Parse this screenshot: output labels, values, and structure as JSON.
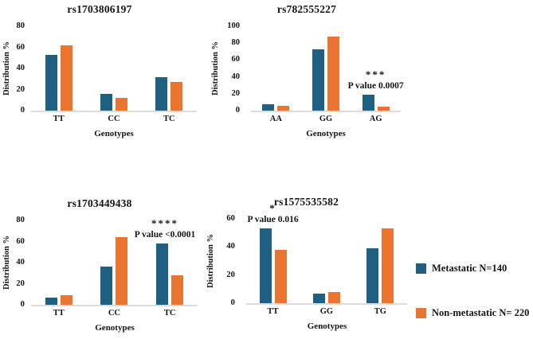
{
  "figure": {
    "ylabel": "Distribution %",
    "xlabel": "Genotypes"
  },
  "legend": {
    "items": [
      {
        "label": "Metastatic N=140",
        "color": "#1F6082"
      },
      {
        "label": "Non-metastatic N= 220",
        "color": "#EC7431"
      }
    ]
  },
  "colors": {
    "metastatic_blue": "#1F6082",
    "non_metastatic_orange": "#EC7431",
    "baseline_gray": "#DCDCDC"
  },
  "chart_data": [
    {
      "type": "bar",
      "title": "rs1703806197",
      "ylabel": "Distribution %",
      "xlabel": "Genotypes",
      "categories": [
        "TT",
        "CC",
        "TC"
      ],
      "series": [
        {
          "name": "Metastatic N=140",
          "color": "#1F6082",
          "values": [
            53,
            16,
            32
          ]
        },
        {
          "name": "Non-metastatic N= 220",
          "color": "#EC7431",
          "values": [
            62,
            12,
            27
          ]
        }
      ],
      "ylim": [
        0,
        80
      ],
      "yticks": [
        0,
        20,
        40,
        60,
        80
      ],
      "grid": false,
      "annotation": null
    },
    {
      "type": "bar",
      "title": "rs782555227",
      "ylabel": "Distribution %",
      "xlabel": "Genotypes",
      "categories": [
        "AA",
        "GG",
        "AG"
      ],
      "series": [
        {
          "name": "Metastatic N=140",
          "color": "#1F6082",
          "values": [
            8,
            73,
            19
          ]
        },
        {
          "name": "Non-metastatic N= 220",
          "color": "#EC7431",
          "values": [
            6,
            88,
            5
          ]
        }
      ],
      "ylim": [
        0,
        100
      ],
      "yticks": [
        0,
        20,
        40,
        60,
        80,
        100
      ],
      "grid": false,
      "annotation": {
        "stars": "***",
        "text": "P value 0.0007",
        "category": "AG"
      }
    },
    {
      "type": "bar",
      "title": "rs1703449438",
      "ylabel": "Distribution %",
      "xlabel": "Genotypes",
      "categories": [
        "TT",
        "CC",
        "TC"
      ],
      "series": [
        {
          "name": "Metastatic N=140",
          "color": "#1F6082",
          "values": [
            7,
            36,
            58
          ]
        },
        {
          "name": "Non-metastatic N= 220",
          "color": "#EC7431",
          "values": [
            9,
            64,
            28
          ]
        }
      ],
      "ylim": [
        0,
        80
      ],
      "yticks": [
        0,
        20,
        40,
        60,
        80
      ],
      "grid": false,
      "annotation": {
        "stars": "****",
        "text": "P value <0.0001",
        "category": "TC"
      }
    },
    {
      "type": "bar",
      "title": "rs1575535582",
      "ylabel": "Distribution %",
      "xlabel": "Genotypes",
      "categories": [
        "TT",
        "GG",
        "TG"
      ],
      "series": [
        {
          "name": "Metastatic N=140",
          "color": "#1F6082",
          "values": [
            53,
            7,
            39
          ]
        },
        {
          "name": "Non-metastatic N= 220",
          "color": "#EC7431",
          "values": [
            38,
            8,
            53
          ]
        }
      ],
      "ylim": [
        0,
        60
      ],
      "yticks": [
        0,
        20,
        40,
        60
      ],
      "grid": false,
      "annotation": {
        "stars": "*",
        "text": "P value 0.016",
        "category": "TT"
      }
    }
  ]
}
